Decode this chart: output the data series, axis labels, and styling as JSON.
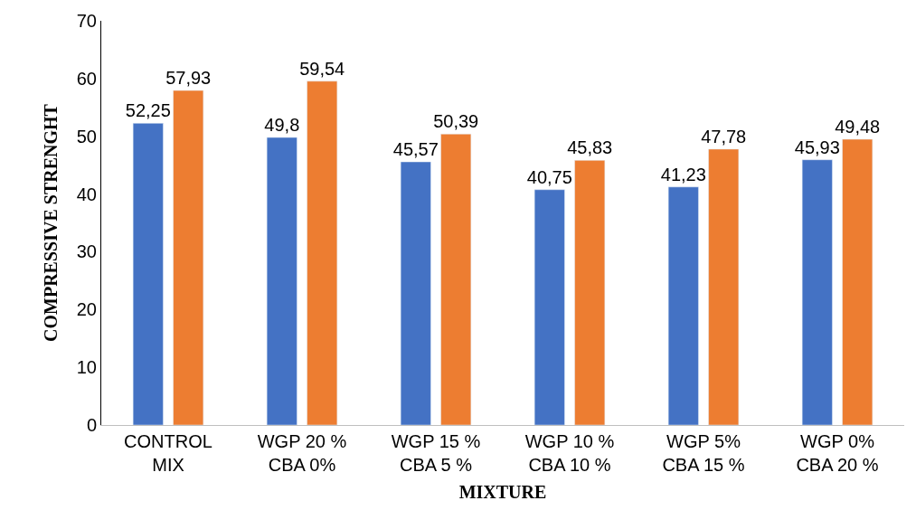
{
  "chart_data": {
    "type": "bar",
    "xlabel": "MIXTURE",
    "ylabel": "COMPRESSIVE STRENGHT",
    "categories": [
      "CONTROL\nMIX",
      "WGP 20 %\nCBA 0%",
      "WGP 15 %\nCBA 5 %",
      "WGP 10 %\nCBA 10 %",
      "WGP 5%\nCBA 15 %",
      "WGP 0%\nCBA 20 %"
    ],
    "series": [
      {
        "color": "#4472c4",
        "values": [
          52.25,
          49.8,
          45.57,
          40.75,
          41.23,
          45.93
        ],
        "value_labels": [
          "52,25",
          "49,8",
          "45,57",
          "40,75",
          "41,23",
          "45,93"
        ]
      },
      {
        "color": "#ed7d31",
        "values": [
          57.93,
          59.54,
          50.39,
          45.83,
          47.78,
          49.48
        ],
        "value_labels": [
          "57,93",
          "59,54",
          "50,39",
          "45,83",
          "47,78",
          "49,48"
        ]
      }
    ],
    "ylim": [
      0,
      70
    ],
    "yticks": [
      0,
      10,
      20,
      30,
      40,
      50,
      60,
      70
    ]
  }
}
